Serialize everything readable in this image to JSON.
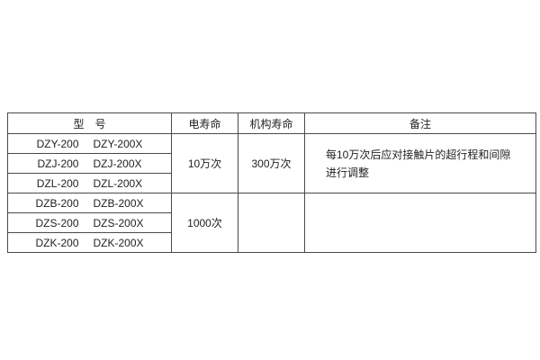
{
  "table": {
    "headers": {
      "model": "型　号",
      "electrical_life": "电寿命",
      "mechanical_life": "机构寿命",
      "remark": "备注"
    },
    "groups": [
      {
        "electrical_life": "10万次",
        "mechanical_life": "300万次",
        "remark_lines": [
          "每10万次后应对接触片的超行程和间隙",
          "进行调整"
        ],
        "rows": [
          [
            "DZY-200",
            "DZY-200X"
          ],
          [
            "DZJ-200",
            "DZJ-200X"
          ],
          [
            "DZL-200",
            "DZL-200X"
          ]
        ]
      },
      {
        "electrical_life": "1000次",
        "mechanical_life": "",
        "remark_lines": [
          "",
          ""
        ],
        "rows": [
          [
            "DZB-200",
            "DZB-200X"
          ],
          [
            "DZS-200",
            "DZS-200X"
          ],
          [
            "DZK-200",
            "DZK-200X"
          ]
        ]
      }
    ]
  }
}
